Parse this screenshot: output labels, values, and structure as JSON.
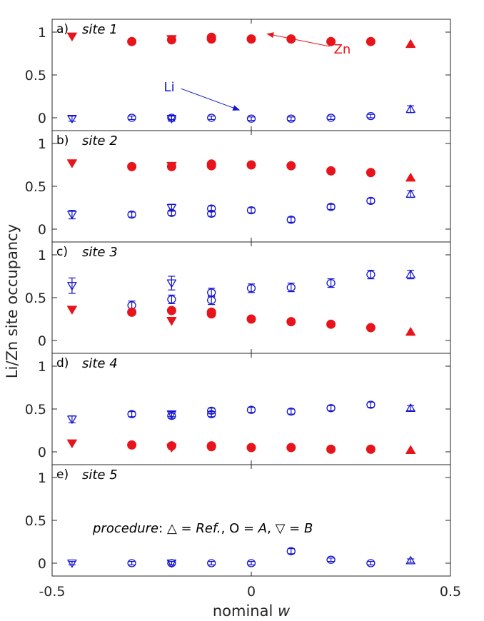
{
  "chart_data": {
    "type": "scatter",
    "ylabel": "Li/Zn site occupancy",
    "xlabel_prefix": "nominal ",
    "xlabel_var": "w",
    "xlim": [
      -0.5,
      0.5
    ],
    "ylim": [
      -0.15,
      1.15
    ],
    "x_ticks": [
      "-0.5",
      "0",
      "0.5"
    ],
    "x_tick_values": [
      -0.5,
      0,
      0.5
    ],
    "y_ticks": [
      "0",
      "0.5",
      "1"
    ],
    "y_tick_values": [
      0,
      0.5,
      1
    ],
    "colors": {
      "zn": "#e8141c",
      "li": "#1414d2",
      "frame": "#262626"
    },
    "annotations": {
      "zn_label": "Zn",
      "zn_from": [
        0.2,
        0.8
      ],
      "zn_to": [
        0.04,
        0.98
      ],
      "li_label": "Li",
      "li_from": [
        -0.18,
        0.29
      ],
      "li_to": [
        -0.03,
        0.09
      ]
    },
    "legend": {
      "prefix": "procedure",
      "colon": ":",
      "triangle_up": "△",
      "eq1": " = ",
      "ref": "Ref.",
      "comma1": ", O = ",
      "a": "A",
      "comma2": ", ",
      "triangle_down": "▽",
      "eq2": " = ",
      "b": "B"
    },
    "panels": [
      {
        "letter": "a)",
        "title": "site 1",
        "zn": [
          {
            "x": -0.45,
            "y": 0.95,
            "m": "down"
          },
          {
            "x": -0.3,
            "y": 0.89,
            "m": "circle"
          },
          {
            "x": -0.2,
            "y": 0.92,
            "m": "down"
          },
          {
            "x": -0.2,
            "y": 0.91,
            "m": "circle"
          },
          {
            "x": -0.1,
            "y": 0.94,
            "m": "circle"
          },
          {
            "x": -0.1,
            "y": 0.92,
            "m": "circle"
          },
          {
            "x": 0.0,
            "y": 0.92,
            "m": "circle"
          },
          {
            "x": 0.1,
            "y": 0.92,
            "m": "circle"
          },
          {
            "x": 0.2,
            "y": 0.89,
            "m": "circle"
          },
          {
            "x": 0.3,
            "y": 0.89,
            "m": "circle"
          },
          {
            "x": 0.4,
            "y": 0.86,
            "m": "up"
          }
        ],
        "li": [
          {
            "x": -0.45,
            "y": -0.01,
            "m": "down",
            "err": 0.03
          },
          {
            "x": -0.3,
            "y": 0.0,
            "m": "circle",
            "err": 0.02
          },
          {
            "x": -0.2,
            "y": -0.01,
            "m": "down",
            "err": 0.03
          },
          {
            "x": -0.2,
            "y": 0.0,
            "m": "circle",
            "err": 0.02
          },
          {
            "x": -0.1,
            "y": 0.0,
            "m": "circle",
            "err": 0.02
          },
          {
            "x": 0.0,
            "y": -0.01,
            "m": "circle",
            "err": 0.02
          },
          {
            "x": 0.1,
            "y": -0.01,
            "m": "circle",
            "err": 0.02
          },
          {
            "x": 0.2,
            "y": 0.0,
            "m": "circle",
            "err": 0.02
          },
          {
            "x": 0.3,
            "y": 0.02,
            "m": "circle",
            "err": 0.02
          },
          {
            "x": 0.4,
            "y": 0.1,
            "m": "up",
            "err": 0.04
          }
        ]
      },
      {
        "letter": "b)",
        "title": "site 2",
        "zn": [
          {
            "x": -0.45,
            "y": 0.77,
            "m": "down"
          },
          {
            "x": -0.3,
            "y": 0.73,
            "m": "circle"
          },
          {
            "x": -0.2,
            "y": 0.74,
            "m": "down"
          },
          {
            "x": -0.2,
            "y": 0.73,
            "m": "circle"
          },
          {
            "x": -0.1,
            "y": 0.76,
            "m": "circle"
          },
          {
            "x": -0.1,
            "y": 0.74,
            "m": "circle"
          },
          {
            "x": 0.0,
            "y": 0.75,
            "m": "circle"
          },
          {
            "x": 0.1,
            "y": 0.74,
            "m": "circle"
          },
          {
            "x": 0.2,
            "y": 0.68,
            "m": "circle"
          },
          {
            "x": 0.3,
            "y": 0.66,
            "m": "circle"
          },
          {
            "x": 0.4,
            "y": 0.6,
            "m": "up"
          }
        ],
        "li": [
          {
            "x": -0.45,
            "y": 0.17,
            "m": "down",
            "err": 0.05
          },
          {
            "x": -0.3,
            "y": 0.17,
            "m": "circle",
            "err": 0.03
          },
          {
            "x": -0.2,
            "y": 0.25,
            "m": "down",
            "err": 0.04
          },
          {
            "x": -0.2,
            "y": 0.19,
            "m": "circle",
            "err": 0.03
          },
          {
            "x": -0.1,
            "y": 0.24,
            "m": "circle",
            "err": 0.03
          },
          {
            "x": -0.1,
            "y": 0.18,
            "m": "circle",
            "err": 0.03
          },
          {
            "x": 0.0,
            "y": 0.22,
            "m": "circle",
            "err": 0.03
          },
          {
            "x": 0.1,
            "y": 0.11,
            "m": "circle",
            "err": 0.03
          },
          {
            "x": 0.2,
            "y": 0.26,
            "m": "circle",
            "err": 0.03
          },
          {
            "x": 0.3,
            "y": 0.33,
            "m": "circle",
            "err": 0.03
          },
          {
            "x": 0.4,
            "y": 0.41,
            "m": "up",
            "err": 0.04
          }
        ]
      },
      {
        "letter": "c)",
        "title": "site 3",
        "zn": [
          {
            "x": -0.45,
            "y": 0.36,
            "m": "down"
          },
          {
            "x": -0.3,
            "y": 0.33,
            "m": "circle"
          },
          {
            "x": -0.2,
            "y": 0.35,
            "m": "circle"
          },
          {
            "x": -0.2,
            "y": 0.23,
            "m": "down"
          },
          {
            "x": -0.1,
            "y": 0.33,
            "m": "circle"
          },
          {
            "x": -0.1,
            "y": 0.31,
            "m": "circle"
          },
          {
            "x": 0.0,
            "y": 0.25,
            "m": "circle"
          },
          {
            "x": 0.1,
            "y": 0.22,
            "m": "circle"
          },
          {
            "x": 0.2,
            "y": 0.19,
            "m": "circle"
          },
          {
            "x": 0.3,
            "y": 0.15,
            "m": "circle"
          },
          {
            "x": 0.4,
            "y": 0.1,
            "m": "up"
          }
        ],
        "li": [
          {
            "x": -0.45,
            "y": 0.64,
            "m": "down",
            "err": 0.09
          },
          {
            "x": -0.3,
            "y": 0.41,
            "m": "circle",
            "err": 0.05
          },
          {
            "x": -0.2,
            "y": 0.67,
            "m": "down",
            "err": 0.08
          },
          {
            "x": -0.2,
            "y": 0.48,
            "m": "circle",
            "err": 0.05
          },
          {
            "x": -0.1,
            "y": 0.56,
            "m": "circle",
            "err": 0.05
          },
          {
            "x": -0.1,
            "y": 0.47,
            "m": "circle",
            "err": 0.05
          },
          {
            "x": 0.0,
            "y": 0.61,
            "m": "circle",
            "err": 0.05
          },
          {
            "x": 0.1,
            "y": 0.62,
            "m": "circle",
            "err": 0.05
          },
          {
            "x": 0.2,
            "y": 0.67,
            "m": "circle",
            "err": 0.05
          },
          {
            "x": 0.3,
            "y": 0.77,
            "m": "circle",
            "err": 0.05
          },
          {
            "x": 0.4,
            "y": 0.77,
            "m": "up",
            "err": 0.05
          }
        ]
      },
      {
        "letter": "d)",
        "title": "site 4",
        "zn": [
          {
            "x": -0.45,
            "y": 0.1,
            "m": "down"
          },
          {
            "x": -0.3,
            "y": 0.08,
            "m": "circle"
          },
          {
            "x": -0.2,
            "y": 0.07,
            "m": "circle"
          },
          {
            "x": -0.2,
            "y": 0.05,
            "m": "down"
          },
          {
            "x": -0.1,
            "y": 0.07,
            "m": "circle"
          },
          {
            "x": -0.1,
            "y": 0.06,
            "m": "circle"
          },
          {
            "x": 0.0,
            "y": 0.05,
            "m": "circle"
          },
          {
            "x": 0.1,
            "y": 0.05,
            "m": "circle"
          },
          {
            "x": 0.2,
            "y": 0.03,
            "m": "circle"
          },
          {
            "x": 0.3,
            "y": 0.03,
            "m": "circle"
          },
          {
            "x": 0.4,
            "y": 0.02,
            "m": "up"
          }
        ],
        "li": [
          {
            "x": -0.45,
            "y": 0.38,
            "m": "down",
            "err": 0.04
          },
          {
            "x": -0.3,
            "y": 0.44,
            "m": "circle",
            "err": 0.03
          },
          {
            "x": -0.2,
            "y": 0.44,
            "m": "down",
            "err": 0.03
          },
          {
            "x": -0.2,
            "y": 0.42,
            "m": "circle",
            "err": 0.03
          },
          {
            "x": -0.1,
            "y": 0.48,
            "m": "circle",
            "err": 0.03
          },
          {
            "x": -0.1,
            "y": 0.44,
            "m": "circle",
            "err": 0.03
          },
          {
            "x": 0.0,
            "y": 0.49,
            "m": "circle",
            "err": 0.03
          },
          {
            "x": 0.1,
            "y": 0.47,
            "m": "circle",
            "err": 0.03
          },
          {
            "x": 0.2,
            "y": 0.51,
            "m": "circle",
            "err": 0.03
          },
          {
            "x": 0.3,
            "y": 0.55,
            "m": "circle",
            "err": 0.03
          },
          {
            "x": 0.4,
            "y": 0.51,
            "m": "up",
            "err": 0.03
          }
        ]
      },
      {
        "letter": "e)",
        "title": "site 5",
        "zn": [],
        "li": [
          {
            "x": -0.45,
            "y": 0.0,
            "m": "down",
            "err": 0.02
          },
          {
            "x": -0.3,
            "y": 0.0,
            "m": "circle",
            "err": 0.02
          },
          {
            "x": -0.2,
            "y": 0.0,
            "m": "down",
            "err": 0.02
          },
          {
            "x": -0.2,
            "y": 0.0,
            "m": "circle",
            "err": 0.02
          },
          {
            "x": -0.1,
            "y": 0.0,
            "m": "circle",
            "err": 0.02
          },
          {
            "x": 0.0,
            "y": 0.0,
            "m": "circle",
            "err": 0.02
          },
          {
            "x": 0.1,
            "y": 0.14,
            "m": "circle",
            "err": 0.03
          },
          {
            "x": 0.2,
            "y": 0.04,
            "m": "circle",
            "err": 0.02
          },
          {
            "x": 0.3,
            "y": 0.0,
            "m": "circle",
            "err": 0.02
          },
          {
            "x": 0.4,
            "y": 0.03,
            "m": "up",
            "err": 0.02
          }
        ]
      }
    ]
  }
}
